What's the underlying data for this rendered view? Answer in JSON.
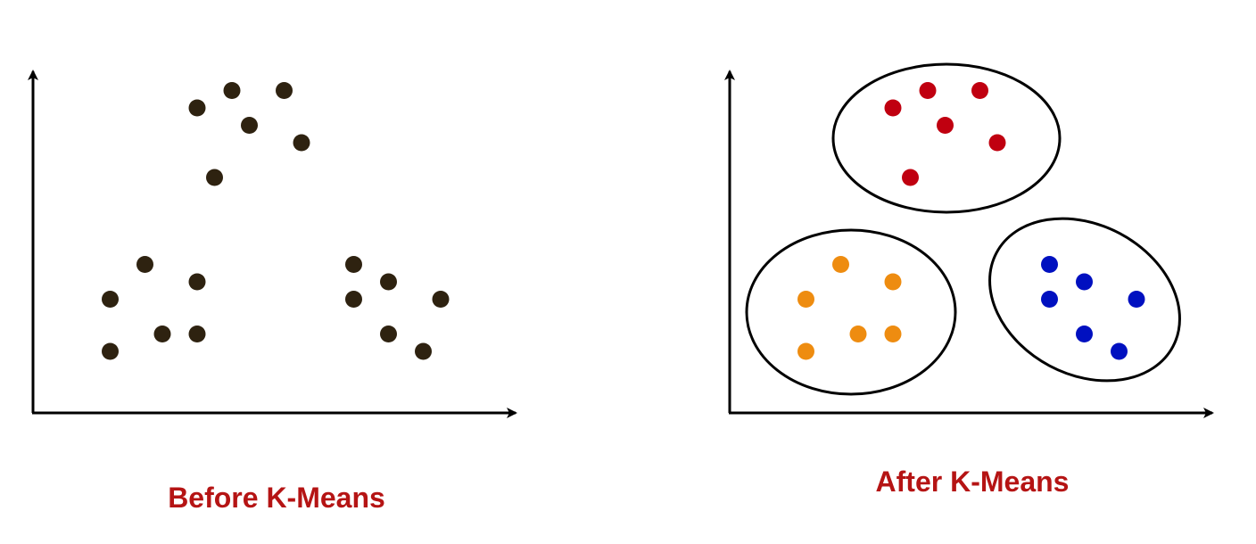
{
  "colors": {
    "background": "#ffffff",
    "axis": "#000000",
    "unclustered_point": "#2e2210",
    "caption": "#b51414",
    "cluster_outline": "#000000"
  },
  "before": {
    "caption": "Before K-Means",
    "points": [
      [
        5.0,
        9.0
      ],
      [
        6.0,
        9.5
      ],
      [
        7.5,
        9.5
      ],
      [
        6.5,
        8.5
      ],
      [
        5.5,
        7.0
      ],
      [
        8.0,
        8.0
      ],
      [
        3.5,
        4.5
      ],
      [
        5.0,
        4.0
      ],
      [
        2.5,
        3.5
      ],
      [
        4.0,
        2.5
      ],
      [
        5.0,
        2.5
      ],
      [
        2.5,
        2.0
      ],
      [
        9.5,
        4.5
      ],
      [
        10.5,
        4.0
      ],
      [
        9.5,
        3.5
      ],
      [
        12.0,
        3.5
      ],
      [
        10.5,
        2.5
      ],
      [
        11.5,
        2.0
      ]
    ]
  },
  "after": {
    "caption": "After K-Means",
    "clusters": [
      {
        "color": "#c00010",
        "points": [
          [
            5.0,
            9.0
          ],
          [
            6.0,
            9.5
          ],
          [
            7.5,
            9.5
          ],
          [
            6.5,
            8.5
          ],
          [
            5.5,
            7.0
          ],
          [
            8.0,
            8.0
          ]
        ]
      },
      {
        "color": "#ee8c10",
        "points": [
          [
            3.5,
            4.5
          ],
          [
            5.0,
            4.0
          ],
          [
            2.5,
            3.5
          ],
          [
            4.0,
            2.5
          ],
          [
            5.0,
            2.5
          ],
          [
            2.5,
            2.0
          ]
        ]
      },
      {
        "color": "#0010c0",
        "points": [
          [
            9.5,
            4.5
          ],
          [
            10.5,
            4.0
          ],
          [
            9.5,
            3.5
          ],
          [
            12.0,
            3.5
          ],
          [
            10.5,
            2.5
          ],
          [
            11.5,
            2.0
          ]
        ]
      }
    ]
  }
}
